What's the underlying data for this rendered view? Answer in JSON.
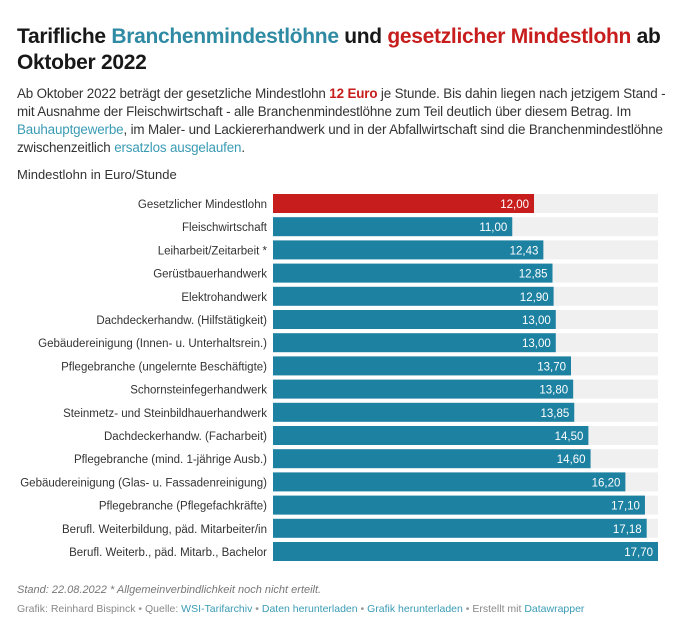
{
  "header": {
    "title_part1": "Tarifliche ",
    "title_blue": "Branchenmindestlöhne",
    "title_part2": " und ",
    "title_red": "gesetzlicher Mindestlohn",
    "title_part3": " ab Oktober 2022"
  },
  "description": {
    "t1": "Ab Oktober 2022 beträgt der gesetzliche Mindestlohn ",
    "highlight": "12 Euro",
    "t2": " je Stunde. Bis dahin liegen nach jetzigem Stand - mit Ausnahme der Fleischwirtschaft - alle Branchenmindestlöhne zum Teil deutlich über diesem Betrag. Im ",
    "link1": "Bauhauptgewerbe",
    "t3": ", im Maler- und Lackiererhandwerk und in der Abfallwirtschaft sind die Branchenmindestlöhne zwischenzeitlich ",
    "link2": "ersatzlos ausgelaufen",
    "t4": "."
  },
  "colors": {
    "highlight": "#c71e1d",
    "bar": "#1d81a2",
    "bar_background": "#f0f0f0",
    "link": "#3a9bb4"
  },
  "chart_data": {
    "type": "bar",
    "orientation": "horizontal",
    "title": "Mindestlohn in Euro/Stunde",
    "xlabel": "",
    "ylabel": "",
    "xlim": [
      0,
      17.7
    ],
    "grid": false,
    "categories": [
      "Gesetzlicher Mindestlohn",
      "Fleischwirtschaft",
      "Leiharbeit/Zeitarbeit *",
      "Gerüstbauerhandwerk",
      "Elektrohandwerk",
      "Dachdeckerhandw. (Hilfstätigkeit)",
      "Gebäudereinigung (Innen- u. Unterhaltsrein.)",
      "Pflegebranche (ungelernte Beschäftigte)",
      "Schornsteinfegerhandwerk",
      "Steinmetz- und Steinbildhauerhandwerk",
      "Dachdeckerhandw. (Facharbeit)",
      "Pflegebranche (mind. 1-jährige Ausb.)",
      "Gebäudereinigung (Glas- u. Fassadenreinigung)",
      "Pflegebranche (Pflegefachkräfte)",
      "Berufl. Weiterbildung, päd. Mitarbeiter/in",
      "Berufl. Weiterb., päd. Mitarb., Bachelor"
    ],
    "values": [
      12.0,
      11.0,
      12.43,
      12.85,
      12.9,
      13.0,
      13.0,
      13.7,
      13.8,
      13.85,
      14.5,
      14.6,
      16.2,
      17.1,
      17.18,
      17.7
    ],
    "value_labels": [
      "12,00",
      "11,00",
      "12,43",
      "12,85",
      "12,90",
      "13,00",
      "13,00",
      "13,70",
      "13,80",
      "13,85",
      "14,50",
      "14,60",
      "16,20",
      "17,10",
      "17,18",
      "17,70"
    ],
    "highlighted_index": 0
  },
  "notes": "Stand: 22.08.2022 * Allgemeinverbindlichkeit noch nicht erteilt.",
  "footer": {
    "grafik": "Grafik: Reinhard Bispinck",
    "sep": " • ",
    "quelle_label": "Quelle: ",
    "quelle_link": "WSI-Tarifarchiv",
    "daten_link": "Daten herunterladen",
    "grafik_link": "Grafik herunterladen",
    "erstellt": "Erstellt mit ",
    "datawrapper_link": "Datawrapper"
  }
}
